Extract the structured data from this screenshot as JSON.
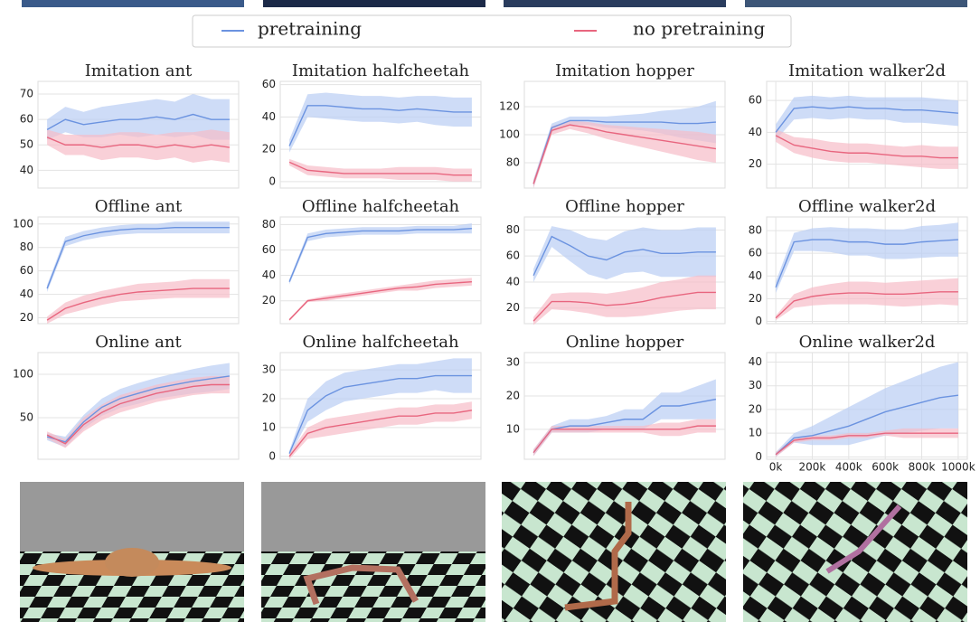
{
  "legend": [
    {
      "name": "pretraining",
      "color": "#6b93e0"
    },
    {
      "name": "no pretraining",
      "color": "#e8667f"
    }
  ],
  "chart_data": [
    {
      "type": "line",
      "title": "Imitation ant",
      "x": [
        0,
        100000,
        200000,
        300000,
        400000,
        500000,
        600000,
        700000,
        800000,
        900000,
        1000000
      ],
      "xlim": [
        -50000,
        1050000
      ],
      "ylim": [
        33,
        75
      ],
      "yticks": [
        40,
        50,
        60,
        70
      ],
      "series": [
        {
          "values": [
            56,
            60,
            58,
            59,
            60,
            60,
            61,
            60,
            62,
            60,
            60
          ],
          "errors": [
            4,
            5,
            5,
            6,
            6,
            7,
            7,
            7,
            8,
            8,
            8
          ]
        },
        {
          "values": [
            53,
            50,
            50,
            49,
            50,
            50,
            49,
            50,
            49,
            50,
            49
          ],
          "errors": [
            3,
            4,
            4,
            5,
            5,
            5,
            5,
            5,
            6,
            6,
            6
          ]
        }
      ]
    },
    {
      "type": "line",
      "title": "Imitation halfcheetah",
      "x": [
        0,
        100000,
        200000,
        300000,
        400000,
        500000,
        600000,
        700000,
        800000,
        900000,
        1000000
      ],
      "xlim": [
        -50000,
        1050000
      ],
      "ylim": [
        -4,
        62
      ],
      "yticks": [
        0,
        20,
        40,
        60
      ],
      "series": [
        {
          "values": [
            22,
            47,
            47,
            46,
            45,
            45,
            44,
            45,
            44,
            43,
            43
          ],
          "errors": [
            4,
            7,
            8,
            8,
            8,
            8,
            8,
            8,
            9,
            9,
            9
          ]
        },
        {
          "values": [
            12,
            7,
            6,
            5,
            5,
            5,
            5,
            5,
            5,
            4,
            4
          ],
          "errors": [
            2,
            3,
            3,
            3,
            3,
            3,
            4,
            4,
            4,
            4,
            4
          ]
        }
      ]
    },
    {
      "type": "line",
      "title": "Imitation hopper",
      "x": [
        0,
        100000,
        200000,
        300000,
        400000,
        500000,
        600000,
        700000,
        800000,
        900000,
        1000000
      ],
      "xlim": [
        -50000,
        1050000
      ],
      "ylim": [
        62,
        138
      ],
      "yticks": [
        80,
        100,
        120
      ],
      "series": [
        {
          "values": [
            65,
            105,
            110,
            110,
            109,
            109,
            109,
            109,
            108,
            108,
            109
          ],
          "errors": [
            3,
            3,
            3,
            3,
            4,
            5,
            6,
            8,
            10,
            12,
            15
          ]
        },
        {
          "values": [
            65,
            103,
            107,
            105,
            102,
            100,
            98,
            96,
            94,
            92,
            90
          ],
          "errors": [
            3,
            3,
            3,
            4,
            5,
            6,
            7,
            8,
            9,
            10,
            10
          ]
        }
      ]
    },
    {
      "type": "line",
      "title": "Imitation walker2d",
      "x": [
        0,
        100000,
        200000,
        300000,
        400000,
        500000,
        600000,
        700000,
        800000,
        900000,
        1000000
      ],
      "xlim": [
        -50000,
        1050000
      ],
      "ylim": [
        5,
        72
      ],
      "yticks": [
        20,
        40,
        60
      ],
      "series": [
        {
          "values": [
            40,
            55,
            56,
            55,
            56,
            55,
            55,
            54,
            54,
            53,
            52
          ],
          "errors": [
            5,
            7,
            7,
            7,
            7,
            7,
            7,
            8,
            8,
            8,
            8
          ]
        },
        {
          "values": [
            38,
            32,
            30,
            28,
            27,
            27,
            26,
            25,
            25,
            24,
            24
          ],
          "errors": [
            4,
            5,
            6,
            6,
            6,
            6,
            6,
            6,
            7,
            7,
            7
          ]
        }
      ]
    },
    {
      "type": "line",
      "title": "Offline ant",
      "x": [
        0,
        100000,
        200000,
        300000,
        400000,
        500000,
        600000,
        700000,
        800000,
        900000,
        1000000
      ],
      "xlim": [
        -50000,
        1050000
      ],
      "ylim": [
        15,
        106
      ],
      "yticks": [
        20,
        40,
        60,
        80,
        100
      ],
      "series": [
        {
          "values": [
            45,
            85,
            90,
            93,
            95,
            96,
            96,
            97,
            97,
            97,
            97
          ],
          "errors": [
            3,
            4,
            4,
            4,
            4,
            4,
            4,
            5,
            5,
            5,
            5
          ]
        },
        {
          "values": [
            18,
            28,
            33,
            37,
            40,
            42,
            43,
            44,
            45,
            45,
            45
          ],
          "errors": [
            3,
            5,
            6,
            6,
            6,
            7,
            7,
            7,
            8,
            8,
            8
          ]
        }
      ]
    },
    {
      "type": "line",
      "title": "Offline halfcheetah",
      "x": [
        0,
        100000,
        200000,
        300000,
        400000,
        500000,
        600000,
        700000,
        800000,
        900000,
        1000000
      ],
      "xlim": [
        -50000,
        1050000
      ],
      "ylim": [
        2,
        86
      ],
      "yticks": [
        20,
        40,
        60,
        80
      ],
      "series": [
        {
          "values": [
            35,
            70,
            73,
            74,
            75,
            75,
            75,
            76,
            76,
            76,
            77
          ],
          "errors": [
            2,
            3,
            3,
            3,
            3,
            3,
            3,
            3,
            3,
            3,
            4
          ]
        },
        {
          "values": [
            5,
            20,
            22,
            24,
            26,
            28,
            30,
            31,
            33,
            34,
            35
          ],
          "errors": [
            1,
            1,
            2,
            2,
            2,
            2,
            2,
            3,
            3,
            3,
            3
          ]
        }
      ]
    },
    {
      "type": "line",
      "title": "Offline hopper",
      "x": [
        0,
        100000,
        200000,
        300000,
        400000,
        500000,
        600000,
        700000,
        800000,
        900000,
        1000000
      ],
      "xlim": [
        -50000,
        1050000
      ],
      "ylim": [
        8,
        90
      ],
      "yticks": [
        20,
        40,
        60,
        80
      ],
      "series": [
        {
          "values": [
            45,
            75,
            68,
            60,
            57,
            63,
            65,
            62,
            62,
            63,
            63
          ],
          "errors": [
            5,
            8,
            12,
            14,
            15,
            16,
            17,
            18,
            18,
            19,
            19
          ]
        },
        {
          "values": [
            10,
            25,
            25,
            24,
            22,
            23,
            25,
            28,
            30,
            32,
            32
          ],
          "errors": [
            3,
            6,
            7,
            8,
            9,
            10,
            11,
            12,
            12,
            13,
            13
          ]
        }
      ]
    },
    {
      "type": "line",
      "title": "Offline walker2d",
      "x": [
        0,
        100000,
        200000,
        300000,
        400000,
        500000,
        600000,
        700000,
        800000,
        900000,
        1000000
      ],
      "xlim": [
        -50000,
        1050000
      ],
      "ylim": [
        -2,
        92
      ],
      "yticks": [
        0,
        20,
        40,
        60,
        80
      ],
      "series": [
        {
          "values": [
            30,
            70,
            72,
            72,
            70,
            70,
            68,
            68,
            70,
            71,
            72
          ],
          "errors": [
            5,
            8,
            10,
            11,
            12,
            12,
            13,
            13,
            14,
            14,
            15
          ]
        },
        {
          "values": [
            3,
            18,
            22,
            24,
            25,
            25,
            24,
            24,
            25,
            26,
            26
          ],
          "errors": [
            2,
            6,
            8,
            9,
            10,
            10,
            10,
            11,
            11,
            11,
            12
          ]
        }
      ]
    },
    {
      "type": "line",
      "title": "Online ant",
      "x": [
        0,
        100000,
        200000,
        300000,
        400000,
        500000,
        600000,
        700000,
        800000,
        900000,
        1000000
      ],
      "xlim": [
        -50000,
        1050000
      ],
      "ylim": [
        2,
        125
      ],
      "yticks": [
        50,
        100
      ],
      "series": [
        {
          "values": [
            28,
            22,
            45,
            62,
            72,
            78,
            84,
            88,
            92,
            95,
            98
          ],
          "errors": [
            4,
            6,
            8,
            10,
            11,
            12,
            12,
            13,
            14,
            15,
            15
          ]
        },
        {
          "values": [
            30,
            20,
            42,
            56,
            66,
            72,
            78,
            82,
            86,
            88,
            88
          ],
          "errors": [
            4,
            5,
            8,
            9,
            10,
            10,
            10,
            10,
            10,
            10,
            10
          ]
        }
      ]
    },
    {
      "type": "line",
      "title": "Online halfcheetah",
      "x": [
        0,
        100000,
        200000,
        300000,
        400000,
        500000,
        600000,
        700000,
        800000,
        900000,
        1000000
      ],
      "xlim": [
        -50000,
        1050000
      ],
      "ylim": [
        -1,
        36
      ],
      "yticks": [
        0,
        10,
        20,
        30
      ],
      "series": [
        {
          "values": [
            1,
            16,
            21,
            24,
            25,
            26,
            27,
            27,
            28,
            28,
            28
          ],
          "errors": [
            1,
            4,
            5,
            5,
            5,
            5,
            5,
            5,
            5,
            6,
            6
          ]
        },
        {
          "values": [
            0,
            8,
            10,
            11,
            12,
            13,
            14,
            14,
            15,
            15,
            16
          ],
          "errors": [
            1,
            2,
            3,
            3,
            3,
            3,
            3,
            3,
            3,
            3,
            3
          ]
        }
      ]
    },
    {
      "type": "line",
      "title": "Online hopper",
      "x": [
        0,
        100000,
        200000,
        300000,
        400000,
        500000,
        600000,
        700000,
        800000,
        900000,
        1000000
      ],
      "xlim": [
        -50000,
        1050000
      ],
      "ylim": [
        1,
        33
      ],
      "yticks": [
        10,
        20,
        30
      ],
      "series": [
        {
          "values": [
            3,
            10,
            11,
            11,
            12,
            13,
            13,
            17,
            17,
            18,
            19
          ],
          "errors": [
            1,
            1,
            2,
            2,
            2,
            3,
            3,
            4,
            4,
            5,
            6
          ]
        },
        {
          "values": [
            3,
            10,
            10,
            10,
            10,
            10,
            10,
            10,
            10,
            11,
            11
          ],
          "errors": [
            1,
            1,
            1,
            1,
            1,
            1,
            1,
            2,
            2,
            2,
            2
          ]
        }
      ]
    },
    {
      "type": "line",
      "title": "Online walker2d",
      "x": [
        0,
        100000,
        200000,
        300000,
        400000,
        500000,
        600000,
        700000,
        800000,
        900000,
        1000000
      ],
      "xlim": [
        -50000,
        1050000
      ],
      "ylim": [
        -1,
        44
      ],
      "yticks": [
        0,
        10,
        20,
        30,
        40
      ],
      "series": [
        {
          "values": [
            1,
            8,
            9,
            11,
            13,
            16,
            19,
            21,
            23,
            25,
            26
          ],
          "errors": [
            1,
            2,
            4,
            6,
            8,
            9,
            10,
            11,
            12,
            13,
            14
          ]
        },
        {
          "values": [
            1,
            7,
            8,
            8,
            9,
            9,
            10,
            10,
            10,
            10,
            10
          ],
          "errors": [
            1,
            1,
            1,
            1,
            1,
            1,
            1,
            2,
            2,
            2,
            2
          ]
        }
      ],
      "xticks": [
        {
          "value": 0,
          "label": "0k"
        },
        {
          "value": 200000,
          "label": "200k"
        },
        {
          "value": 400000,
          "label": "400k"
        },
        {
          "value": 600000,
          "label": "600k"
        },
        {
          "value": 800000,
          "label": "800k"
        },
        {
          "value": 1000000,
          "label": "1000k"
        }
      ]
    }
  ]
}
